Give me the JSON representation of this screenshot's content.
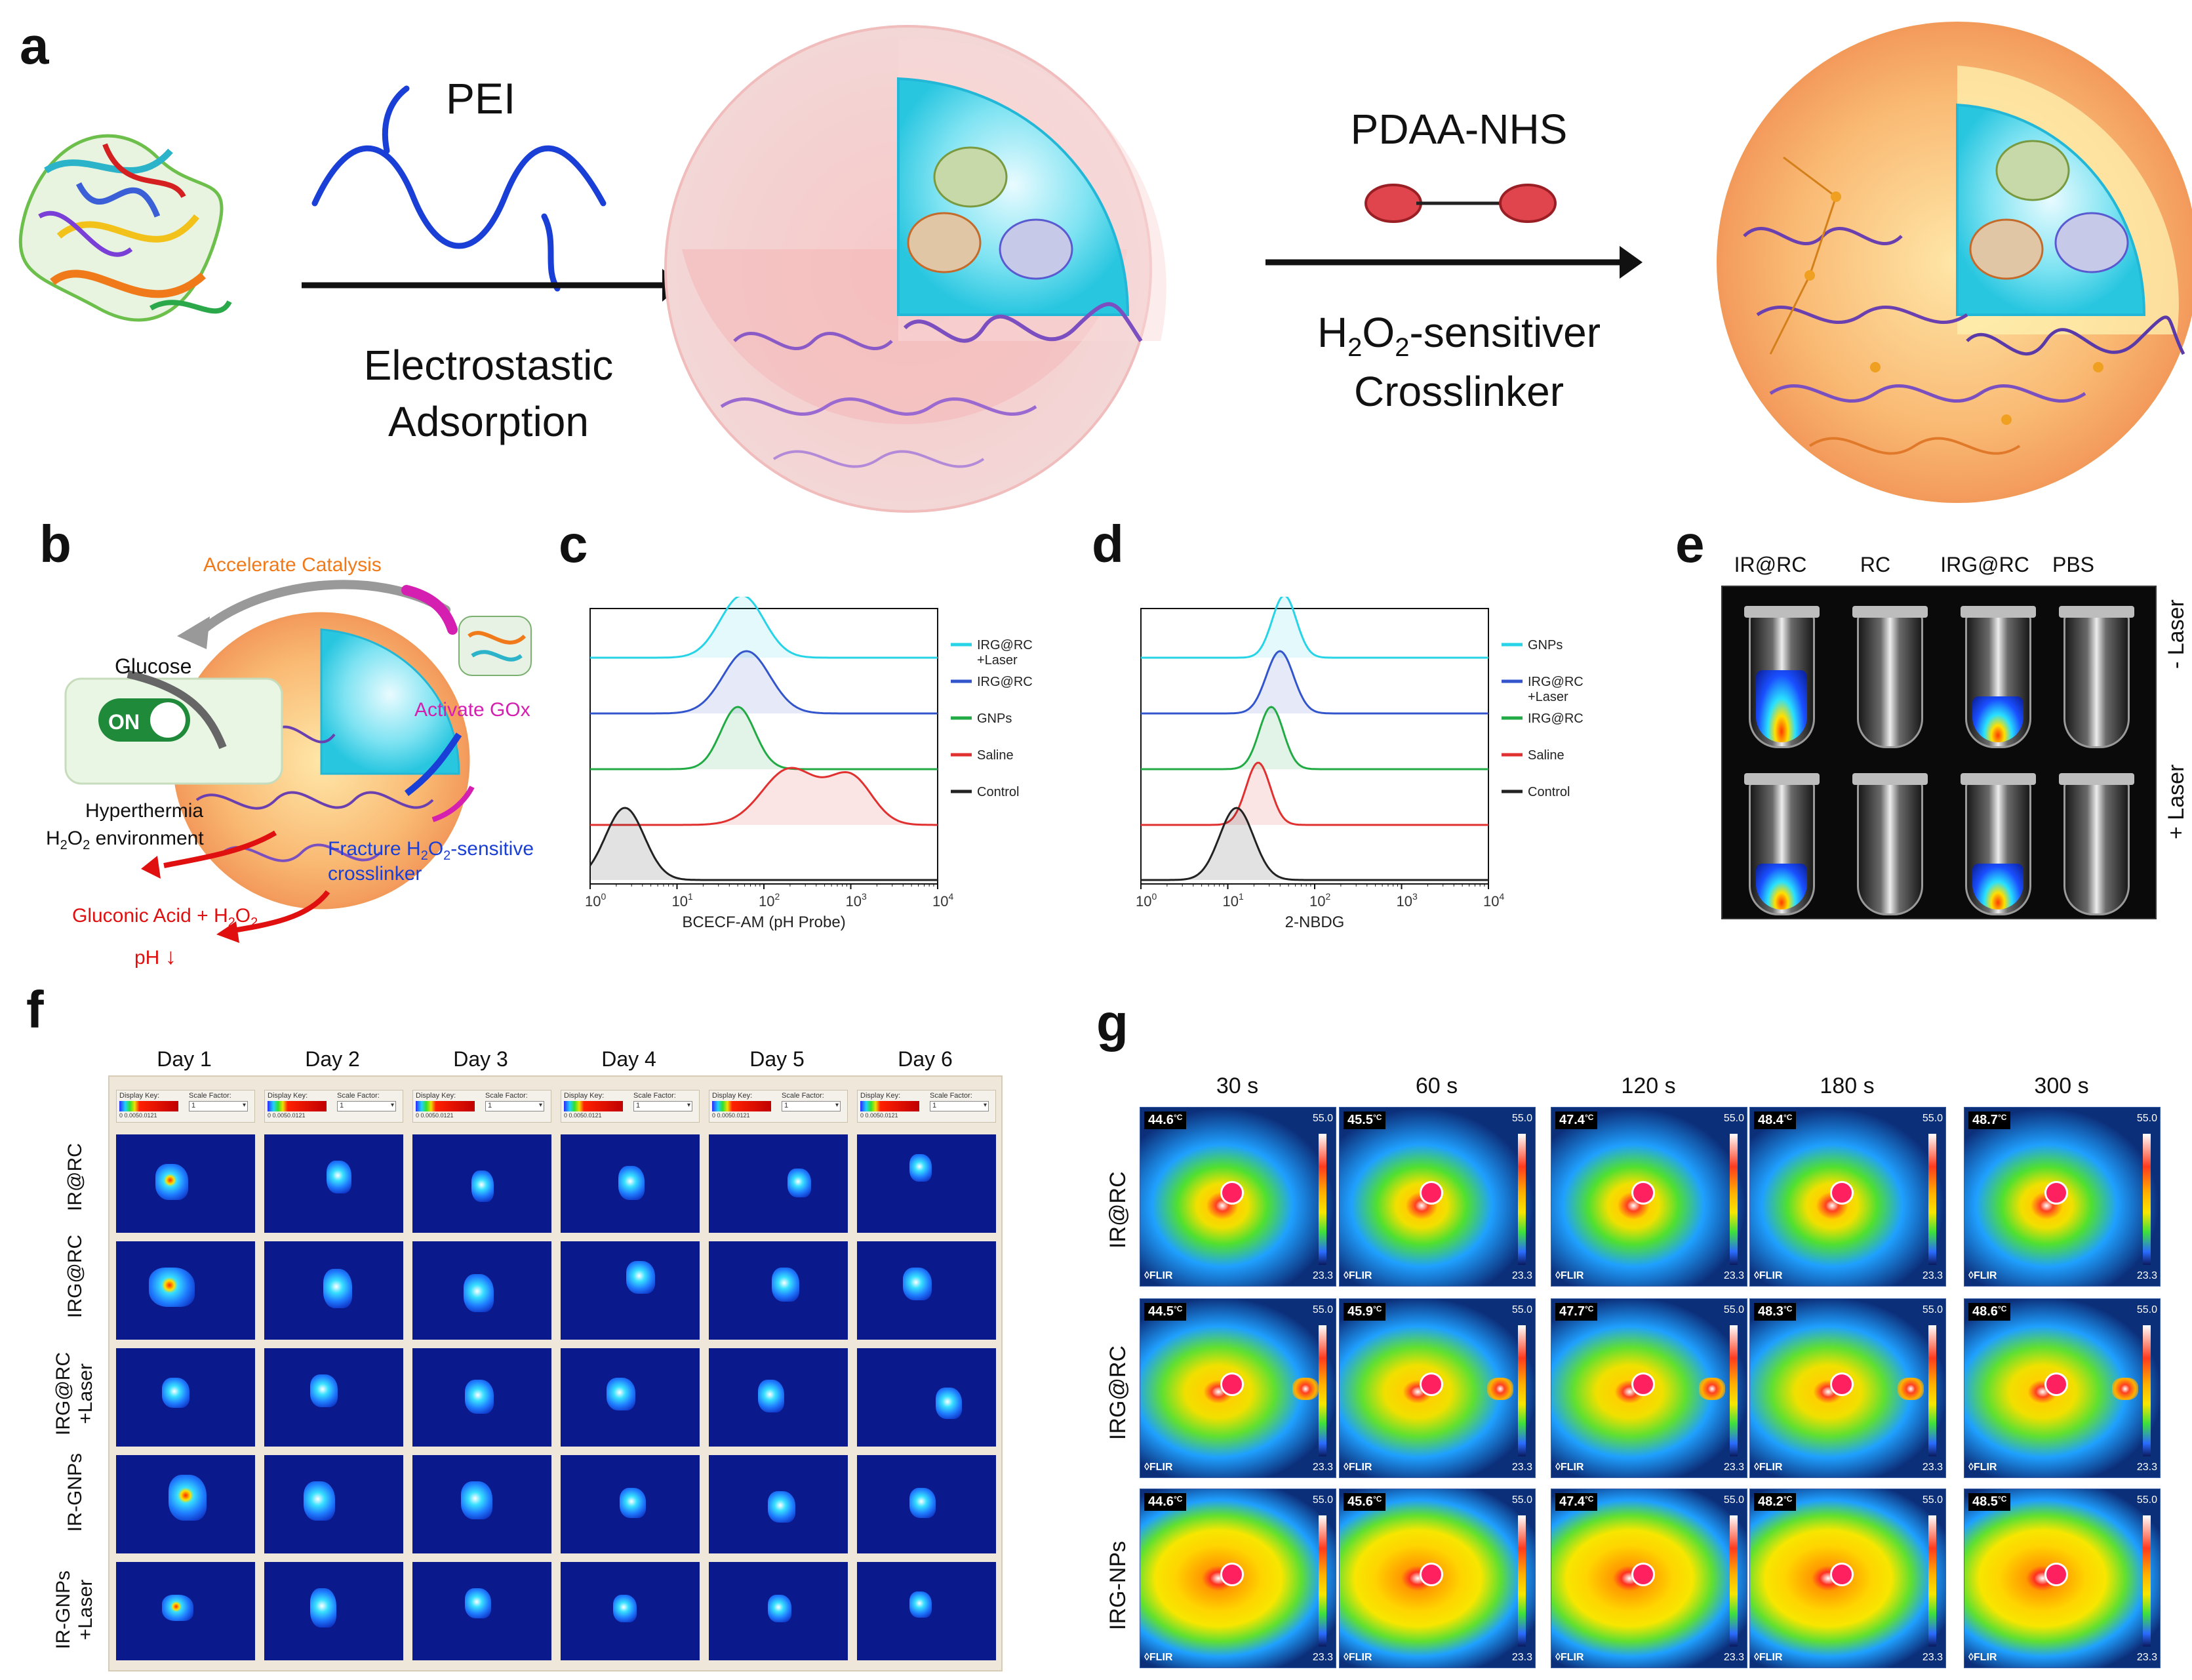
{
  "panel_labels": {
    "a": "a",
    "b": "b",
    "c": "c",
    "d": "d",
    "e": "e",
    "f": "f",
    "g": "g"
  },
  "panel_a": {
    "reagent1": "PEI",
    "step1_line1": "Electrostastic",
    "step1_line2": "Adsorption",
    "reagent2": "PDAA-NHS",
    "step2_line1_pre": "H",
    "step2_line1_sub1": "2",
    "step2_line1_mid": "O",
    "step2_line1_sub2": "2",
    "step2_line1_post": "-sensitiver",
    "step2_line2": "Crosslinker"
  },
  "panel_b": {
    "accelerate": "Accelerate Catalysis",
    "glucose": "Glucose",
    "activate": "Activate GOx",
    "switch": "ON",
    "hyperthermia": "Hyperthermia",
    "env_pre": "H",
    "env_sub1": "2",
    "env_mid": "O",
    "env_sub2": "2",
    "env_post": " environment",
    "fracture_pre": "Fracture H",
    "fracture_sub1": "2",
    "fracture_mid": "O",
    "fracture_sub2": "2",
    "fracture_post": "-sensitive",
    "fracture_line2": "crosslinker",
    "gluconic": "Gluconic Acid + H",
    "gluconic_sub1": "2",
    "gluconic_mid": "O",
    "gluconic_sub2": "2",
    "ph": "pH"
  },
  "chart_data": [
    {
      "panel": "c",
      "type": "line",
      "title": "",
      "xlabel": "BCECF-AM (pH Probe)",
      "ylabel": "",
      "xscale": "log",
      "xlim": [
        1,
        10000
      ],
      "xticks": [
        {
          "base": "10",
          "exp": "0"
        },
        {
          "base": "10",
          "exp": "1"
        },
        {
          "base": "10",
          "exp": "2"
        },
        {
          "base": "10",
          "exp": "3"
        },
        {
          "base": "10",
          "exp": "4"
        }
      ],
      "legend_placement": "right",
      "series": [
        {
          "name": "IRG@RC +Laser",
          "legend_line1": "IRG@RC",
          "legend_line2": "+Laser",
          "color": "#27d3e6",
          "peak_log": 1.75,
          "width": 0.45
        },
        {
          "name": "IRG@RC",
          "legend_line1": "IRG@RC",
          "legend_line2": "",
          "color": "#3355cc",
          "peak_log": 1.8,
          "width": 0.48
        },
        {
          "name": "GNPs",
          "legend_line1": "GNPs",
          "legend_line2": "",
          "color": "#22aa44",
          "peak_log": 1.7,
          "width": 0.35
        },
        {
          "name": "Saline",
          "legend_line1": "Saline",
          "legend_line2": "",
          "color": "#e03030",
          "peak_log": 2.6,
          "width": 0.9
        },
        {
          "name": "Control",
          "legend_line1": "Control",
          "legend_line2": "",
          "color": "#222222",
          "peak_log": 0.4,
          "width": 0.4
        }
      ]
    },
    {
      "panel": "d",
      "type": "line",
      "title": "",
      "xlabel": "2-NBDG",
      "ylabel": "",
      "xscale": "log",
      "xlim": [
        1,
        10000
      ],
      "xticks": [
        {
          "base": "10",
          "exp": "0"
        },
        {
          "base": "10",
          "exp": "1"
        },
        {
          "base": "10",
          "exp": "2"
        },
        {
          "base": "10",
          "exp": "3"
        },
        {
          "base": "10",
          "exp": "4"
        }
      ],
      "legend_placement": "right",
      "series": [
        {
          "name": "GNPs",
          "legend_line1": "GNPs",
          "legend_line2": "",
          "color": "#27d3e6",
          "peak_log": 1.65,
          "width": 0.25
        },
        {
          "name": "IRG@RC +Laser",
          "legend_line1": "IRG@RC",
          "legend_line2": "+Laser",
          "color": "#3355cc",
          "peak_log": 1.6,
          "width": 0.28
        },
        {
          "name": "IRG@RC",
          "legend_line1": "IRG@RC",
          "legend_line2": "",
          "color": "#22aa44",
          "peak_log": 1.5,
          "width": 0.25
        },
        {
          "name": "Saline",
          "legend_line1": "Saline",
          "legend_line2": "",
          "color": "#e03030",
          "peak_log": 1.35,
          "width": 0.25
        },
        {
          "name": "Control",
          "legend_line1": "Control",
          "legend_line2": "",
          "color": "#222222",
          "peak_log": 1.1,
          "width": 0.35
        }
      ]
    }
  ],
  "panel_e": {
    "columns": [
      "IR@RC",
      "RC",
      "IRG@RC",
      "PBS"
    ],
    "rows": [
      "- Laser",
      "+ Laser"
    ],
    "glow": [
      [
        true,
        false,
        true,
        false
      ],
      [
        true,
        false,
        true,
        false
      ]
    ]
  },
  "panel_f": {
    "days": [
      "Day 1",
      "Day 2",
      "Day 3",
      "Day 4",
      "Day 5",
      "Day 6"
    ],
    "rows": [
      {
        "line1": "IR@RC",
        "line2": ""
      },
      {
        "line1": "IRG@RC",
        "line2": ""
      },
      {
        "line1": "IRG@RC",
        "line2": "+Laser"
      },
      {
        "line1": "IR-GNPs",
        "line2": ""
      },
      {
        "line1": "IR-GNPs",
        "line2": "+Laser"
      }
    ],
    "key_label": "Display Key:",
    "scale_label": "Scale Factor:",
    "scale_value": "1",
    "key_ticks": "0   0.0050.0121"
  },
  "panel_g": {
    "times": [
      "30 s",
      "60 s",
      "120 s",
      "180 s",
      "300 s"
    ],
    "rows": [
      "IR@RC",
      "IRG@RC",
      "IRG-NPs"
    ],
    "temps": [
      [
        "44.6",
        "45.5",
        "47.4",
        "48.4",
        "48.7"
      ],
      [
        "44.5",
        "45.9",
        "47.7",
        "48.3",
        "48.6"
      ],
      [
        "44.6",
        "45.6",
        "47.4",
        "48.2",
        "48.5"
      ]
    ],
    "unit": "°C",
    "scale_max": "55.0",
    "scale_min": "23.3",
    "brand": "◊FLIR"
  },
  "colors": {
    "arrow": "#111111",
    "pei": "#1a3fd6",
    "orange_text": "#f07a1a",
    "magenta_text": "#d41fb0",
    "blue_text": "#1a3fd6",
    "red_text": "#e01010"
  }
}
